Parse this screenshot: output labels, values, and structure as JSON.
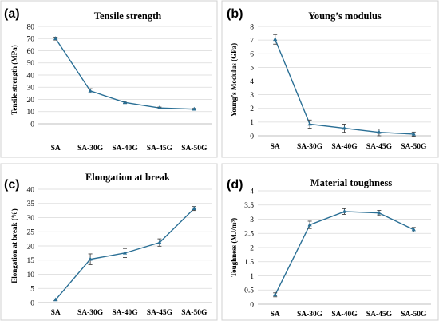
{
  "colors": {
    "series": "#2a6f95",
    "marker": "#2a6f95"
  },
  "chart_data": [
    {
      "panel": "(a)",
      "type": "line",
      "title": "Tensile strength",
      "ylabel": "Tensile strength (MPa)",
      "xlabel": "",
      "categories": [
        "SA",
        "SA-30G",
        "SA-40G",
        "SA-45G",
        "SA-50G"
      ],
      "values": [
        70,
        27,
        17.5,
        13,
        12
      ],
      "errors": [
        1.2,
        1.8,
        0.9,
        0.7,
        0.6
      ],
      "ylim": [
        0,
        80
      ],
      "yticks": [
        0,
        10,
        20,
        30,
        40,
        50,
        60,
        70,
        80
      ],
      "grid": true
    },
    {
      "panel": "(b)",
      "type": "line",
      "title": "Young’s modulus",
      "ylabel": "Young’s Modulus (GPa)",
      "xlabel": "",
      "categories": [
        "SA",
        "SA-30G",
        "SA-40G",
        "SA-45G",
        "SA-50G"
      ],
      "values": [
        7.05,
        0.85,
        0.55,
        0.25,
        0.12
      ],
      "errors": [
        0.35,
        0.3,
        0.3,
        0.25,
        0.15
      ],
      "ylim": [
        0,
        8
      ],
      "yticks": [
        0,
        1,
        2,
        3,
        4,
        5,
        6,
        7,
        8
      ],
      "grid": true
    },
    {
      "panel": "(c)",
      "type": "line",
      "title": "Elongation at break",
      "ylabel": "Elongation at break (%)",
      "xlabel": "",
      "categories": [
        "SA",
        "SA-30G",
        "SA-40G",
        "SA-45G",
        "SA-50G"
      ],
      "values": [
        1,
        15.3,
        17.5,
        21.2,
        33.2
      ],
      "errors": [
        0.3,
        1.9,
        1.6,
        1.3,
        0.7
      ],
      "ylim": [
        0,
        40
      ],
      "yticks": [
        0,
        5,
        10,
        15,
        20,
        25,
        30,
        35,
        40
      ],
      "grid": true
    },
    {
      "panel": "(d)",
      "type": "line",
      "title": "Material toughness",
      "ylabel": "Toughness (MJ/m³)",
      "xlabel": "",
      "categories": [
        "SA",
        "SA-30G",
        "SA-40G",
        "SA-45G",
        "SA-50G"
      ],
      "values": [
        0.33,
        2.8,
        3.27,
        3.22,
        2.63
      ],
      "errors": [
        0.07,
        0.13,
        0.1,
        0.09,
        0.08
      ],
      "ylim": [
        0,
        4
      ],
      "yticks": [
        0,
        0.5,
        1,
        1.5,
        2,
        2.5,
        3,
        3.5,
        4
      ],
      "grid": true
    }
  ]
}
